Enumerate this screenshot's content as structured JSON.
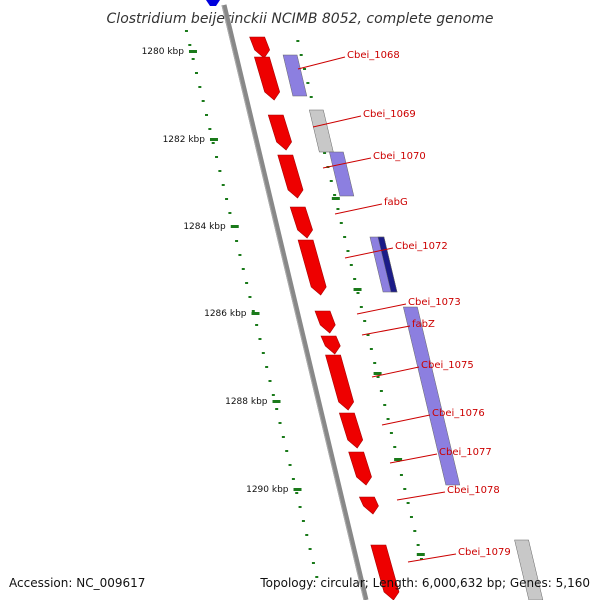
{
  "title": "Clostridium beijerinckii NCIMB 8052, complete genome",
  "footer": {
    "accession": "Accession: NC_009617",
    "summary": "Topology: circular; Length: 6,000,632 bp; Genes: 5,160"
  },
  "colors": {
    "forward_cds": "#ee0000",
    "gene_bar": "#8c7fe0",
    "gene_bar_dark": "#1c1c88",
    "gene_bar_grey": "#c8c8c8",
    "backbone": "#888888",
    "tick": "#1a7a1a",
    "label": "#cc0000"
  },
  "scale_ticks": [
    {
      "label": "1280 kbp"
    },
    {
      "label": "1282 kbp"
    },
    {
      "label": "1284 kbp"
    },
    {
      "label": "1286 kbp"
    },
    {
      "label": "1288 kbp"
    },
    {
      "label": "1290 kbp"
    }
  ],
  "gene_labels": [
    {
      "label": "Cbei_1068"
    },
    {
      "label": "Cbei_1069"
    },
    {
      "label": "Cbei_1070"
    },
    {
      "label": "fabG"
    },
    {
      "label": "Cbei_1072"
    },
    {
      "label": "Cbei_1073"
    },
    {
      "label": "fabZ"
    },
    {
      "label": "Cbei_1075"
    },
    {
      "label": "Cbei_1076"
    },
    {
      "label": "Cbei_1077"
    },
    {
      "label": "Cbei_1078"
    },
    {
      "label": "Cbei_1079"
    }
  ]
}
